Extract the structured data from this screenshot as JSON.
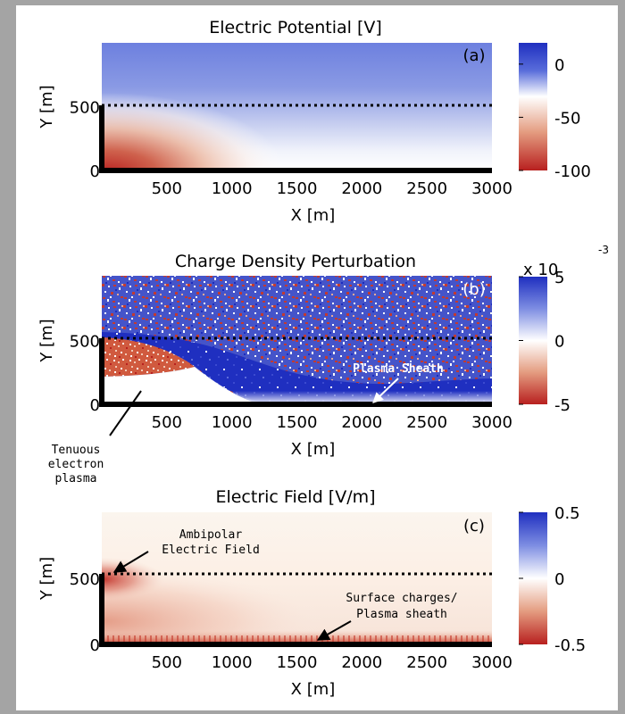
{
  "chart_data": [
    {
      "type": "heatmap",
      "title": "Electric Potential [V]",
      "panel_label": "(a)",
      "xlabel": "X [m]",
      "ylabel": "Y [m]",
      "xlim": [
        0,
        3000
      ],
      "ylim": [
        0,
        1000
      ],
      "xticks": [
        500,
        1000,
        1500,
        2000,
        2500,
        3000
      ],
      "yticks": [
        0,
        500
      ],
      "colorbar": {
        "range": [
          -100,
          20
        ],
        "ticks": [
          0,
          -50,
          -100
        ],
        "exponent": ""
      },
      "colormap": {
        "low": "#b8201f",
        "mid": "#ffffff",
        "high": "#2236c4"
      },
      "structure": {
        "wall_x": 0,
        "wall_top_y": 500,
        "floor_y": 0,
        "dotted_line_y": 500
      },
      "annotations": []
    },
    {
      "type": "heatmap",
      "title": "Charge Density Perturbation",
      "panel_label": "(b)",
      "xlabel": "X [m]",
      "ylabel": "Y [m]",
      "xlim": [
        0,
        3000
      ],
      "ylim": [
        0,
        1000
      ],
      "xticks": [
        500,
        1000,
        1500,
        2000,
        2500,
        3000
      ],
      "yticks": [
        0,
        500
      ],
      "colorbar": {
        "range": [
          -5,
          5
        ],
        "ticks": [
          5,
          0,
          -5
        ],
        "exponent": "x 10",
        "exponent_power": "-3"
      },
      "colormap": {
        "low": "#b8201f",
        "mid": "#ffffff",
        "high": "#2236c4"
      },
      "structure": {
        "wall_x": 0,
        "wall_top_y": 500,
        "floor_y": 0,
        "dotted_line_y": 500
      },
      "annotations": [
        {
          "text": "Plasma Sheath",
          "style": "white",
          "x": 2350,
          "y": 330
        },
        {
          "text": "Tenuous electron plasma",
          "lines": [
            "Tenuous",
            "electron",
            "plasma"
          ],
          "style": "black"
        }
      ]
    },
    {
      "type": "heatmap",
      "title": "Electric Field [V/m]",
      "panel_label": "(c)",
      "xlabel": "X [m]",
      "ylabel": "Y [m]",
      "xlim": [
        0,
        3000
      ],
      "ylim": [
        0,
        1000
      ],
      "xticks": [
        500,
        1000,
        1500,
        2000,
        2500,
        3000
      ],
      "yticks": [
        0,
        500
      ],
      "colorbar": {
        "range": [
          -0.5,
          0.5
        ],
        "ticks": [
          0.5,
          0,
          -0.5
        ],
        "exponent": ""
      },
      "colormap": {
        "low": "#b8201f",
        "mid": "#ffffff",
        "high": "#2236c4"
      },
      "structure": {
        "wall_x": 0,
        "wall_top_y": 500,
        "floor_y": 0,
        "dotted_line_y": 500
      },
      "annotations": [
        {
          "text": "Ambipolar Electric Field",
          "lines": [
            "Ambipolar",
            "Electric Field"
          ],
          "style": "black"
        },
        {
          "text": "Surface charges/ Plasma sheath",
          "lines": [
            "Surface charges/",
            "Plasma sheath"
          ],
          "style": "black"
        }
      ]
    }
  ]
}
